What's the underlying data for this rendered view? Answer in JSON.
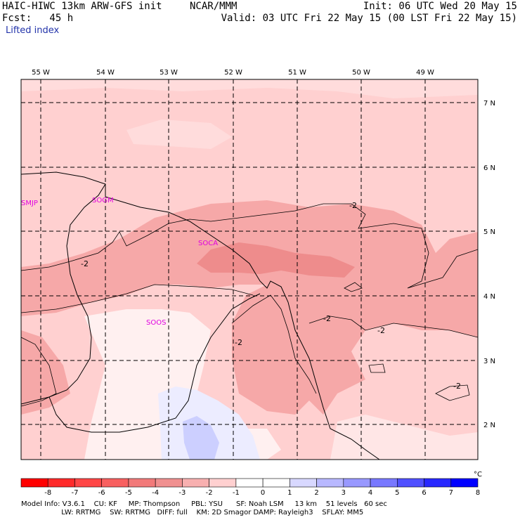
{
  "header": {
    "line1_left": "HAIC-HIWC 13km ARW-GFS init",
    "line1_mid": "NCAR/MMM",
    "line1_right": "Init: 06 UTC Wed 20 May 15",
    "line2_left": "Fcst:   45 h",
    "line2_right": "Valid: 03 UTC Fri 22 May 15 (00 LST Fri 22 May 15)"
  },
  "field_name": "Lifted index",
  "map": {
    "lon_labels": [
      "55 W",
      "54 W",
      "53 W",
      "52 W",
      "51 W",
      "50 W",
      "49 W"
    ],
    "lat_labels": [
      "7 N",
      "6 N",
      "5 N",
      "4 N",
      "3 N",
      "2 N"
    ],
    "stations": [
      "SMJP",
      "SOGM",
      "SOCA",
      "SOOS"
    ],
    "contour_labels": [
      "-2",
      "-2",
      "-2",
      "-2",
      "-2",
      "-2"
    ],
    "colors": {
      "background": "#ffd0d0",
      "moderate": "#f6a8a8",
      "strong": "#ee8c8c",
      "neutral": "#fff2f2",
      "stable": "#e8e8ff",
      "stable_strong": "#c8c8ff"
    }
  },
  "colorbar": {
    "ticks": [
      "-8",
      "-7",
      "-6",
      "-5",
      "-4",
      "-3",
      "-2",
      "-1",
      "0",
      "1",
      "2",
      "3",
      "4",
      "5",
      "6",
      "7",
      "8"
    ],
    "unit": "°C",
    "colors": [
      "#ff0000",
      "#ff2a2a",
      "#ff4646",
      "#f86060",
      "#f27a7a",
      "#f09090",
      "#f8b0b0",
      "#ffd0d0",
      "#ffffff",
      "#ffffff",
      "#d8d8ff",
      "#b8b8ff",
      "#9898ff",
      "#7878ff",
      "#5050ff",
      "#2828ff",
      "#0000ff"
    ]
  },
  "model_info": {
    "line1": "Model Info: V3.6.1    CU: KF     MP: Thompson     PBL: YSU      SF: Noah LSM     13 km    51 levels   60 sec",
    "line2": "                  LW: RRTMG    SW: RRTMG   DIFF: full    KM: 2D Smagor DAMP: Rayleigh3    SFLAY: MM5"
  }
}
